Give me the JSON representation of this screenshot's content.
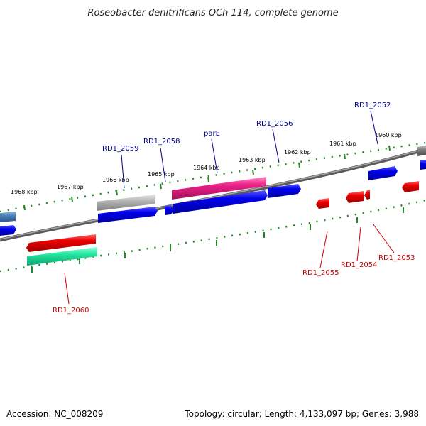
{
  "title": "Roseobacter denitrificans OCh 114, complete genome",
  "footer": {
    "accession": "Accession: NC_008209",
    "summary": "Topology: circular; Length: 4,133,097 bp; Genes: 3,988"
  },
  "colors": {
    "backbone": "#808080",
    "tick": "#228b22",
    "forward_label": "#00008b",
    "reverse_label": "#cc0000"
  },
  "ticks": [
    "1968 kbp",
    "1967 kbp",
    "1966 kbp",
    "1965 kbp",
    "1964 kbp",
    "1963 kbp",
    "1962 kbp",
    "1961 kbp",
    "1960 kbp"
  ],
  "gene_labels": [
    {
      "name": "rd1-2059-label",
      "text": "RD1_2059",
      "strand": "forward"
    },
    {
      "name": "rd1-2058-label",
      "text": "RD1_2058",
      "strand": "forward"
    },
    {
      "name": "pare-label",
      "text": "parE",
      "strand": "forward"
    },
    {
      "name": "rd1-2056-label",
      "text": "RD1_2056",
      "strand": "forward"
    },
    {
      "name": "rd1-2052-label",
      "text": "RD1_2052",
      "strand": "forward"
    },
    {
      "name": "rd1-2060-label",
      "text": "RD1_2060",
      "strand": "reverse"
    },
    {
      "name": "rd1-2055-label",
      "text": "RD1_2055",
      "strand": "reverse"
    },
    {
      "name": "rd1-2054-label",
      "text": "RD1_2054",
      "strand": "reverse"
    },
    {
      "name": "rd1-2053-label",
      "text": "RD1_2053",
      "strand": "reverse"
    }
  ]
}
